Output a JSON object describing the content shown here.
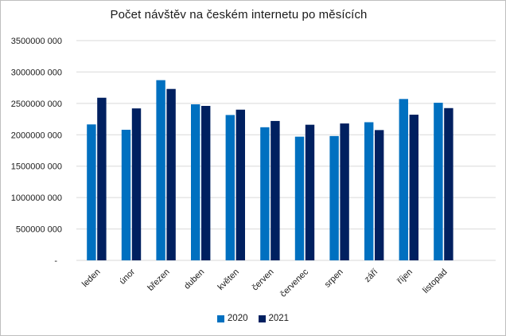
{
  "chart_data": {
    "type": "bar",
    "title": "Počet návštěv na českém internetu po měsících",
    "categories": [
      "leden",
      "únor",
      "březen",
      "duben",
      "květen",
      "červen",
      "červenec",
      "srpen",
      "září",
      "říjen",
      "listopad"
    ],
    "series": [
      {
        "name": "2020",
        "color": "#0070C0",
        "values": [
          2165000000,
          2080000000,
          2870000000,
          2485000000,
          2315000000,
          2120000000,
          1970000000,
          1980000000,
          2200000000,
          2570000000,
          2510000000
        ]
      },
      {
        "name": "2021",
        "color": "#002060",
        "values": [
          2590000000,
          2420000000,
          2730000000,
          2460000000,
          2400000000,
          2220000000,
          2160000000,
          2180000000,
          2075000000,
          2320000000,
          2425000000
        ]
      }
    ],
    "y_axis": {
      "min": 0,
      "max": 3500000000,
      "step": 500000000,
      "tick_labels_bottom_up": [
        "-",
        "500000 000",
        "1000000 000",
        "1500000 000",
        "2000000 000",
        "2500000 000",
        "3000000 000",
        "3500000 000"
      ]
    },
    "x_axis": {
      "label_rotation_deg": -45,
      "category_slots": 12
    },
    "legend": {
      "position": "bottom",
      "entries": [
        "2020",
        "2021"
      ]
    },
    "grid": true,
    "colors": {
      "gridline": "#D9D9D9",
      "axis_text": "#1a1a1a",
      "background": "#FFFFFF",
      "frame_border": "#BFBFBF"
    }
  }
}
